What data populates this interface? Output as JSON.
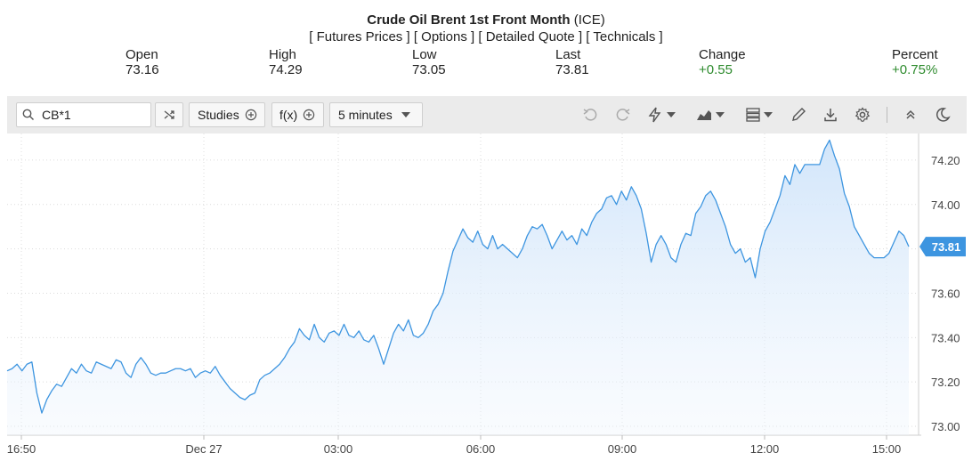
{
  "header": {
    "title_bold": "Crude Oil Brent 1st Front Month",
    "title_exchange": "(ICE)",
    "links": [
      "[ Futures Prices ]",
      "[ Options ]",
      "[ Detailed Quote ]",
      "[ Technicals ]"
    ]
  },
  "stats": {
    "open": {
      "label": "Open",
      "value": "73.16"
    },
    "high": {
      "label": "High",
      "value": "74.29"
    },
    "low": {
      "label": "Low",
      "value": "73.05"
    },
    "last": {
      "label": "Last",
      "value": "73.81"
    },
    "change": {
      "label": "Change",
      "value": "+0.55"
    },
    "percent": {
      "label": "Percent",
      "value": "+0.75%"
    }
  },
  "toolbar": {
    "symbol_value": "CB*1",
    "studies_label": "Studies",
    "fx_label": "f(x)",
    "interval_label": "5 minutes",
    "icons": [
      "search-icon",
      "shuffle-icon",
      "plus-circle-icon",
      "undo-icon",
      "redo-icon",
      "lightning-icon",
      "area-chart-icon",
      "layout-icon",
      "pencil-icon",
      "download-icon",
      "gear-icon",
      "collapse-icon",
      "moon-icon"
    ]
  },
  "colors": {
    "line": "#3d95e0",
    "fill_top": "#cfe4fa",
    "positive": "#2e8b2e",
    "last_badge": "#3d95e0"
  },
  "chart_data": {
    "type": "area",
    "title": "",
    "xlabel": "",
    "ylabel": "",
    "ylim": [
      72.96,
      74.32
    ],
    "y_ticks": [
      "74.20",
      "74.00",
      "73.80",
      "73.60",
      "73.40",
      "73.20",
      "73.00"
    ],
    "x_ticks": [
      "16:50",
      "Dec 27",
      "03:00",
      "06:00",
      "09:00",
      "12:00",
      "15:00"
    ],
    "last_price_label": "73.81",
    "last_value": 73.81,
    "grid": true,
    "series": [
      {
        "values": [
          73.25,
          73.26,
          73.28,
          73.25,
          73.28,
          73.29,
          73.15,
          73.06,
          73.12,
          73.16,
          73.19,
          73.18,
          73.22,
          73.26,
          73.24,
          73.28,
          73.25,
          73.24,
          73.29,
          73.28,
          73.27,
          73.26,
          73.3,
          73.29,
          73.24,
          73.22,
          73.28,
          73.31,
          73.28,
          73.24,
          73.23,
          73.24,
          73.24,
          73.25,
          73.26,
          73.26,
          73.25,
          73.26,
          73.22,
          73.24,
          73.25,
          73.24,
          73.27,
          73.23,
          73.2,
          73.17,
          73.15,
          73.13,
          73.12,
          73.14,
          73.15,
          73.21,
          73.23,
          73.24,
          73.26,
          73.28,
          73.31,
          73.35,
          73.38,
          73.44,
          73.41,
          73.39,
          73.46,
          73.4,
          73.38,
          73.42,
          73.43,
          73.41,
          73.46,
          73.41,
          73.4,
          73.43,
          73.39,
          73.38,
          73.41,
          73.35,
          73.28,
          73.35,
          73.42,
          73.46,
          73.43,
          73.48,
          73.41,
          73.4,
          73.42,
          73.46,
          73.52,
          73.55,
          73.6,
          73.7,
          73.79,
          73.84,
          73.89,
          73.85,
          73.83,
          73.88,
          73.82,
          73.8,
          73.86,
          73.8,
          73.82,
          73.8,
          73.78,
          73.76,
          73.8,
          73.86,
          73.9,
          73.89,
          73.91,
          73.86,
          73.8,
          73.84,
          73.88,
          73.84,
          73.86,
          73.82,
          73.89,
          73.86,
          73.92,
          73.96,
          73.98,
          74.03,
          74.04,
          74.0,
          74.06,
          74.02,
          74.08,
          74.04,
          73.98,
          73.87,
          73.74,
          73.82,
          73.86,
          73.82,
          73.76,
          73.74,
          73.82,
          73.87,
          73.86,
          73.96,
          73.99,
          74.04,
          74.06,
          74.02,
          73.96,
          73.9,
          73.82,
          73.78,
          73.8,
          73.74,
          73.76,
          73.67,
          73.8,
          73.88,
          73.92,
          73.98,
          74.04,
          74.13,
          74.09,
          74.18,
          74.14,
          74.18,
          74.18,
          74.18,
          74.18,
          74.25,
          74.29,
          74.22,
          74.16,
          74.05,
          73.99,
          73.9,
          73.86,
          73.82,
          73.78,
          73.76,
          73.76,
          73.76,
          73.78,
          73.83,
          73.88,
          73.86,
          73.81
        ]
      }
    ]
  }
}
